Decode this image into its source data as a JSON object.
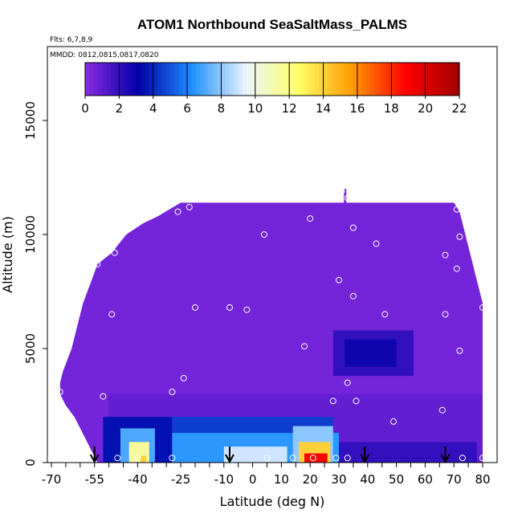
{
  "header": {
    "title": "ATOM1 Northbound SeaSaltMass_PALMS",
    "flights_note": "Flts: 6,7,8,9",
    "dates_note": "MMDD: 0812,0815,0817,0820"
  },
  "chart_data": {
    "type": "heatmap",
    "title": "ATOM1 Northbound SeaSaltMass_PALMS",
    "xlabel": "Latitude (deg N)",
    "ylabel": "Altitude (m)",
    "xlim": [
      -70,
      80
    ],
    "ylim": [
      0,
      17000
    ],
    "x_tick_labels": [
      "-70",
      "-55",
      "-40",
      "-25",
      "-10",
      "0",
      "10",
      "20",
      "30",
      "40",
      "50",
      "60",
      "70",
      "80"
    ],
    "x_tick_values": [
      -70,
      -55,
      -40,
      -25,
      -10,
      0,
      10,
      20,
      30,
      40,
      50,
      60,
      70,
      80
    ],
    "y_tick_labels": [
      "0",
      "5000",
      "10000",
      "15000"
    ],
    "y_tick_values": [
      0,
      5000,
      10000,
      15000
    ],
    "colorbar": {
      "min": 0,
      "max": 22,
      "tick_labels": [
        "0",
        "2",
        "4",
        "6",
        "8",
        "10",
        "12",
        "14",
        "16",
        "18",
        "20",
        "22"
      ],
      "tick_values": [
        0,
        2,
        4,
        6,
        8,
        10,
        12,
        14,
        16,
        18,
        20,
        22
      ],
      "colors": [
        "#8a2be2",
        "#0000a8",
        "#1e90ff",
        "#eaf4ff",
        "#ffff66",
        "#ff9a00",
        "#ff0000",
        "#a00000"
      ]
    },
    "background_value": 0.5,
    "envelope_top": [
      {
        "lat": -67,
        "alt": 3500
      },
      {
        "lat": -66,
        "alt": 4000
      },
      {
        "lat": -63,
        "alt": 5000
      },
      {
        "lat": -61,
        "alt": 6000
      },
      {
        "lat": -59,
        "alt": 7000
      },
      {
        "lat": -56,
        "alt": 8000
      },
      {
        "lat": -54,
        "alt": 8700
      },
      {
        "lat": -49,
        "alt": 9200
      },
      {
        "lat": -44,
        "alt": 10000
      },
      {
        "lat": -38,
        "alt": 10500
      },
      {
        "lat": -33,
        "alt": 10800
      },
      {
        "lat": -25,
        "alt": 11400
      },
      {
        "lat": 30,
        "alt": 11400
      },
      {
        "lat": 70,
        "alt": 11400
      },
      {
        "lat": 72,
        "alt": 11000
      },
      {
        "lat": 74,
        "alt": 10000
      },
      {
        "lat": 76,
        "alt": 9000
      },
      {
        "lat": 78,
        "alt": 8000
      },
      {
        "lat": 80,
        "alt": 7000
      }
    ],
    "envelope_bottom_left": [
      {
        "lat": -67,
        "alt": 3000
      },
      {
        "lat": -65,
        "alt": 2500
      },
      {
        "lat": -62,
        "alt": 2000
      },
      {
        "lat": -60,
        "alt": 1500
      },
      {
        "lat": -58,
        "alt": 1000
      },
      {
        "lat": -56,
        "alt": 500
      },
      {
        "lat": -54,
        "alt": 0
      }
    ],
    "regions": [
      {
        "lat": [
          -50,
          80
        ],
        "alt": [
          0,
          3000
        ],
        "value": 0.9
      },
      {
        "lat": [
          -52,
          -28
        ],
        "alt": [
          0,
          2000
        ],
        "value": 3.5
      },
      {
        "lat": [
          -46,
          -34
        ],
        "alt": [
          0,
          1500
        ],
        "value": 7
      },
      {
        "lat": [
          -43,
          -36
        ],
        "alt": [
          0,
          900
        ],
        "value": 11.5
      },
      {
        "lat": [
          -39,
          -37
        ],
        "alt": [
          0,
          300
        ],
        "value": 14
      },
      {
        "lat": [
          -28,
          28
        ],
        "alt": [
          0,
          2000
        ],
        "value": 4.5
      },
      {
        "lat": [
          -28,
          30
        ],
        "alt": [
          0,
          1300
        ],
        "value": 6.5
      },
      {
        "lat": [
          -10,
          12
        ],
        "alt": [
          0,
          700
        ],
        "value": 9
      },
      {
        "lat": [
          14,
          28
        ],
        "alt": [
          0,
          1600
        ],
        "value": 8
      },
      {
        "lat": [
          16,
          27
        ],
        "alt": [
          0,
          900
        ],
        "value": 14
      },
      {
        "lat": [
          18,
          26
        ],
        "alt": [
          0,
          400
        ],
        "value": 19
      },
      {
        "lat": [
          30,
          78
        ],
        "alt": [
          0,
          900
        ],
        "value": 2
      },
      {
        "lat": [
          28,
          56
        ],
        "alt": [
          3800,
          5800
        ],
        "value": 2
      },
      {
        "lat": [
          32,
          50
        ],
        "alt": [
          4200,
          5400
        ],
        "value": 2.8
      }
    ],
    "sample_points": [
      {
        "lat": -67,
        "alt": 3100
      },
      {
        "lat": -52,
        "alt": 2900
      },
      {
        "lat": -49,
        "alt": 6500
      },
      {
        "lat": -54,
        "alt": 8700
      },
      {
        "lat": -48,
        "alt": 9200
      },
      {
        "lat": -26,
        "alt": 11000
      },
      {
        "lat": -22,
        "alt": 11200
      },
      {
        "lat": 4,
        "alt": 10000
      },
      {
        "lat": 20,
        "alt": 10700
      },
      {
        "lat": 33,
        "alt": 11600
      },
      {
        "lat": 31,
        "alt": 11900
      },
      {
        "lat": 35,
        "alt": 10300
      },
      {
        "lat": 43,
        "alt": 9600
      },
      {
        "lat": 67,
        "alt": 9100
      },
      {
        "lat": 71,
        "alt": 11100
      },
      {
        "lat": 72,
        "alt": 9900
      },
      {
        "lat": 71,
        "alt": 8500
      },
      {
        "lat": 80,
        "alt": 6800
      },
      {
        "lat": 67,
        "alt": 6500
      },
      {
        "lat": 72,
        "alt": 4900
      },
      {
        "lat": 46,
        "alt": 6500
      },
      {
        "lat": 30,
        "alt": 8000
      },
      {
        "lat": 35,
        "alt": 7300
      },
      {
        "lat": -20,
        "alt": 6800
      },
      {
        "lat": -8,
        "alt": 6800
      },
      {
        "lat": -2,
        "alt": 6700
      },
      {
        "lat": 18,
        "alt": 5100
      },
      {
        "lat": 33,
        "alt": 3500
      },
      {
        "lat": -24,
        "alt": 3700
      },
      {
        "lat": -28,
        "alt": 3100
      },
      {
        "lat": 28,
        "alt": 2700
      },
      {
        "lat": 36,
        "alt": 2700
      },
      {
        "lat": 49,
        "alt": 1800
      },
      {
        "lat": 66,
        "alt": 2300
      },
      {
        "lat": -40,
        "alt": 200
      },
      {
        "lat": -47,
        "alt": 200
      },
      {
        "lat": -28,
        "alt": 200
      },
      {
        "lat": 5,
        "alt": 200
      },
      {
        "lat": 14,
        "alt": 200
      },
      {
        "lat": 21,
        "alt": 200
      },
      {
        "lat": 29,
        "alt": 200
      },
      {
        "lat": 33,
        "alt": 200
      },
      {
        "lat": 73,
        "alt": 200
      },
      {
        "lat": 80,
        "alt": 200
      }
    ],
    "profile_arrow_lats": [
      -55,
      -8,
      39,
      67
    ],
    "max_alt_spike": {
      "lat": 32,
      "alt": [
        11300,
        12000
      ]
    }
  }
}
